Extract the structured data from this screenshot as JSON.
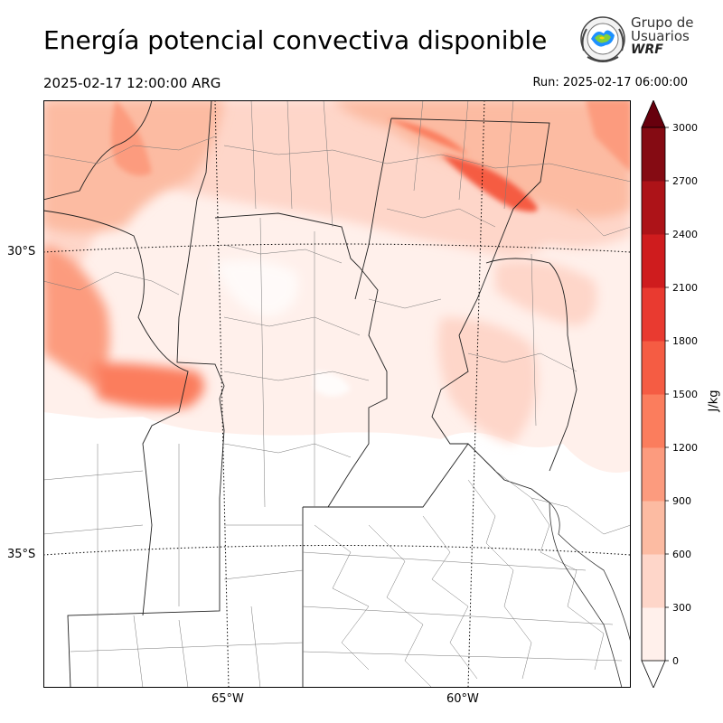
{
  "title": "Energía potencial convectiva disponible",
  "valid_time": "2025-02-17 12:00:00 ARG",
  "run_time": "Run: 2025-02-17 06:00:00",
  "logo": {
    "line1": "Grupo de",
    "line2": "Usuarios",
    "line3": "WRF",
    "icon": "globe-seal-icon"
  },
  "map": {
    "lat_labels": [
      "30°S",
      "35°S"
    ],
    "lon_labels": [
      "65°W",
      "60°W"
    ]
  },
  "colorbar": {
    "unit": "J/kg",
    "ticks": [
      "0",
      "300",
      "600",
      "900",
      "1200",
      "1500",
      "1800",
      "2100",
      "2400",
      "2700",
      "3000"
    ],
    "colors": [
      "#fff0eb",
      "#fed6c9",
      "#fcbba2",
      "#fc9b7e",
      "#fb7d5d",
      "#f55c43",
      "#e93a30",
      "#cf1c1e",
      "#ad1318",
      "#850b13"
    ],
    "under_color": "#ffffff",
    "over_color": "#67000d"
  },
  "chart_data": {
    "type": "heatmap",
    "variable": "CAPE",
    "unit": "J/kg",
    "levels": [
      0,
      300,
      600,
      900,
      1200,
      1500,
      1800,
      2100,
      2400,
      2700,
      3000
    ],
    "extend": "both",
    "lat_ticks": [
      "30°S",
      "35°S"
    ],
    "lon_ticks": [
      "65°W",
      "60°W"
    ]
  }
}
